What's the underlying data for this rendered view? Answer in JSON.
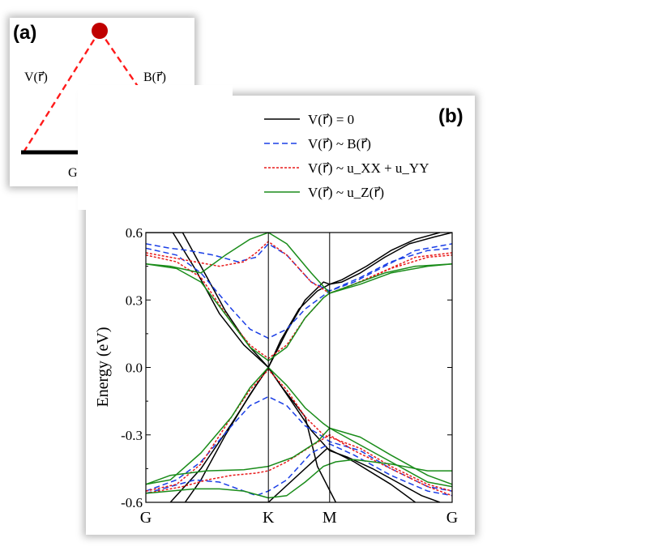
{
  "panel_a": {
    "tag": "(a)",
    "left_label": "V(r⃗)",
    "right_label": "B(r⃗)",
    "bottom_label": "G(r⃗ − r⃗′)",
    "vertex_color": "#c00000",
    "dash_color": "#ff1a1a"
  },
  "panel_b": {
    "tag": "(b)"
  },
  "chart_data": {
    "type": "line",
    "title": "",
    "xlabel": "",
    "ylabel": "Energy (eV)",
    "ylim": [
      -0.6,
      0.6
    ],
    "yticks": [
      "0.6",
      "0.3",
      "0.0",
      "-0.3",
      "-0.6"
    ],
    "yticks_values": [
      0.6,
      0.3,
      0.0,
      -0.3,
      -0.6
    ],
    "x_points": [
      "G",
      "K",
      "M",
      "G"
    ],
    "x_points_pos": [
      0,
      1,
      1.5,
      2.5
    ],
    "xlim": [
      0,
      2.5
    ],
    "legend_position": "top-right, outside plot",
    "legend": [
      {
        "label": "V(r⃗) = 0",
        "color": "#000000",
        "dash": "solid"
      },
      {
        "label": "V(r⃗) ~ B(r⃗)",
        "color": "#1a3ee6",
        "dash": "dashed"
      },
      {
        "label": "V(r⃗) ~ u_XX + u_YY",
        "color": "#e81b1b",
        "dash": "dotted"
      },
      {
        "label": "V(r⃗) ~ u_Z(r⃗)",
        "color": "#1a8c1a",
        "dash": "solid"
      }
    ],
    "series": [
      {
        "name": "V(r⃗) = 0",
        "color": "#000000",
        "dash": "solid",
        "bands": [
          [
            [
              0,
              0.6
            ],
            [
              0.2,
              0.6
            ],
            [
              0.3,
              0.6
            ],
            [
              0.45,
              0.45
            ],
            [
              0.65,
              0.25
            ],
            [
              0.85,
              0.09
            ],
            [
              1,
              0
            ],
            [
              1.1,
              0.12
            ],
            [
              1.25,
              0.26
            ],
            [
              1.4,
              0.34
            ],
            [
              1.5,
              0.37
            ],
            [
              1.6,
              0.38
            ],
            [
              1.75,
              0.42
            ],
            [
              1.95,
              0.49
            ],
            [
              2.15,
              0.55
            ],
            [
              2.35,
              0.58
            ],
            [
              2.5,
              0.6
            ]
          ],
          [
            [
              0.22,
              0.6
            ],
            [
              0.4,
              0.44
            ],
            [
              0.6,
              0.24
            ],
            [
              0.8,
              0.1
            ],
            [
              1,
              0
            ],
            [
              1.15,
              0.16
            ],
            [
              1.3,
              0.3
            ],
            [
              1.45,
              0.38
            ],
            [
              1.5,
              0.37
            ],
            [
              1.6,
              0.39
            ],
            [
              1.8,
              0.45
            ],
            [
              2.0,
              0.52
            ],
            [
              2.2,
              0.57
            ],
            [
              2.4,
              0.6
            ]
          ],
          [
            [
              0.32,
              -0.6
            ],
            [
              0.45,
              -0.5
            ],
            [
              0.65,
              -0.3
            ],
            [
              0.85,
              -0.12
            ],
            [
              1,
              0
            ],
            [
              1.15,
              -0.12
            ],
            [
              1.35,
              -0.28
            ],
            [
              1.5,
              -0.37
            ],
            [
              1.65,
              -0.4
            ],
            [
              1.85,
              -0.45
            ],
            [
              2.05,
              -0.51
            ],
            [
              2.25,
              -0.57
            ],
            [
              2.4,
              -0.6
            ]
          ],
          [
            [
              0.2,
              -0.6
            ],
            [
              0.45,
              -0.45
            ],
            [
              0.7,
              -0.25
            ],
            [
              0.9,
              -0.08
            ],
            [
              1,
              0
            ],
            [
              1.1,
              -0.08
            ],
            [
              1.3,
              -0.22
            ],
            [
              1.4,
              -0.44
            ],
            [
              1.55,
              -0.6
            ]
          ],
          [
            [
              0.2,
              -0.6
            ],
            [
              1.0,
              -0.6
            ],
            [
              1.48,
              -0.36
            ],
            [
              1.7,
              -0.42
            ],
            [
              2.0,
              -0.52
            ],
            [
              2.2,
              -0.6
            ]
          ]
        ]
      },
      {
        "name": "V(r⃗) ~ B(r⃗)",
        "color": "#1a3ee6",
        "dash": "dashed",
        "bands": [
          [
            [
              0,
              0.55
            ],
            [
              0.2,
              0.53
            ],
            [
              0.35,
              0.52
            ],
            [
              0.55,
              0.5
            ],
            [
              0.75,
              0.47
            ],
            [
              0.9,
              0.49
            ],
            [
              1,
              0.55
            ],
            [
              1.15,
              0.5
            ],
            [
              1.35,
              0.38
            ],
            [
              1.5,
              0.34
            ],
            [
              1.7,
              0.38
            ],
            [
              1.95,
              0.45
            ],
            [
              2.2,
              0.52
            ],
            [
              2.5,
              0.55
            ]
          ],
          [
            [
              0,
              0.53
            ],
            [
              0.25,
              0.5
            ],
            [
              0.45,
              0.42
            ],
            [
              0.7,
              0.26
            ],
            [
              0.85,
              0.17
            ],
            [
              1,
              0.13
            ],
            [
              1.15,
              0.17
            ],
            [
              1.3,
              0.26
            ],
            [
              1.45,
              0.32
            ],
            [
              1.5,
              0.34
            ],
            [
              1.75,
              0.4
            ],
            [
              2.0,
              0.47
            ],
            [
              2.3,
              0.52
            ],
            [
              2.5,
              0.53
            ]
          ],
          [
            [
              0,
              -0.55
            ],
            [
              0.25,
              -0.5
            ],
            [
              0.45,
              -0.42
            ],
            [
              0.7,
              -0.26
            ],
            [
              0.85,
              -0.17
            ],
            [
              1,
              -0.13
            ],
            [
              1.15,
              -0.17
            ],
            [
              1.3,
              -0.26
            ],
            [
              1.45,
              -0.31
            ],
            [
              1.5,
              -0.33
            ],
            [
              1.75,
              -0.37
            ],
            [
              2.0,
              -0.45
            ],
            [
              2.3,
              -0.53
            ],
            [
              2.5,
              -0.55
            ]
          ],
          [
            [
              0,
              -0.56
            ],
            [
              0.2,
              -0.53
            ],
            [
              0.4,
              -0.5
            ],
            [
              0.6,
              -0.51
            ],
            [
              0.8,
              -0.55
            ],
            [
              0.9,
              -0.57
            ],
            [
              1,
              -0.55
            ],
            [
              1.15,
              -0.5
            ],
            [
              1.35,
              -0.38
            ],
            [
              1.5,
              -0.34
            ],
            [
              1.7,
              -0.39
            ],
            [
              2.0,
              -0.48
            ],
            [
              2.3,
              -0.55
            ],
            [
              2.5,
              -0.57
            ]
          ]
        ]
      },
      {
        "name": "V(r⃗) ~ u_XX + u_YY",
        "color": "#e81b1b",
        "dash": "dotted",
        "bands": [
          [
            [
              0,
              0.51
            ],
            [
              0.2,
              0.49
            ],
            [
              0.4,
              0.47
            ],
            [
              0.6,
              0.45
            ],
            [
              0.8,
              0.47
            ],
            [
              0.9,
              0.51
            ],
            [
              1,
              0.56
            ],
            [
              1.15,
              0.5
            ],
            [
              1.35,
              0.38
            ],
            [
              1.5,
              0.33
            ],
            [
              1.7,
              0.37
            ],
            [
              1.95,
              0.43
            ],
            [
              2.2,
              0.49
            ],
            [
              2.5,
              0.51
            ]
          ],
          [
            [
              0,
              0.5
            ],
            [
              0.25,
              0.47
            ],
            [
              0.45,
              0.4
            ],
            [
              0.7,
              0.2
            ],
            [
              0.85,
              0.1
            ],
            [
              1,
              0.04
            ],
            [
              1.15,
              0.1
            ],
            [
              1.3,
              0.22
            ],
            [
              1.45,
              0.31
            ],
            [
              1.5,
              0.33
            ],
            [
              1.75,
              0.38
            ],
            [
              2.0,
              0.44
            ],
            [
              2.3,
              0.49
            ],
            [
              2.5,
              0.5
            ]
          ],
          [
            [
              0,
              -0.55
            ],
            [
              0.25,
              -0.52
            ],
            [
              0.45,
              -0.43
            ],
            [
              0.7,
              -0.22
            ],
            [
              0.85,
              -0.1
            ],
            [
              1,
              -0.01
            ],
            [
              1.15,
              -0.1
            ],
            [
              1.3,
              -0.22
            ],
            [
              1.45,
              -0.3
            ],
            [
              1.5,
              -0.31
            ],
            [
              1.75,
              -0.36
            ],
            [
              2.0,
              -0.44
            ],
            [
              2.3,
              -0.52
            ],
            [
              2.5,
              -0.55
            ]
          ],
          [
            [
              0,
              -0.56
            ],
            [
              0.3,
              -0.53
            ],
            [
              0.5,
              -0.5
            ],
            [
              0.7,
              -0.48
            ],
            [
              0.9,
              -0.47
            ],
            [
              1,
              -0.46
            ],
            [
              1.15,
              -0.42
            ],
            [
              1.35,
              -0.35
            ],
            [
              1.5,
              -0.3
            ],
            [
              1.7,
              -0.37
            ],
            [
              2.0,
              -0.45
            ],
            [
              2.3,
              -0.53
            ],
            [
              2.5,
              -0.57
            ]
          ]
        ]
      },
      {
        "name": "V(r⃗) ~ u_Z(r⃗)",
        "color": "#1a8c1a",
        "dash": "solid",
        "bands": [
          [
            [
              0,
              0.46
            ],
            [
              0.2,
              0.45
            ],
            [
              0.45,
              0.42
            ],
            [
              0.65,
              0.5
            ],
            [
              0.85,
              0.57
            ],
            [
              1,
              0.6
            ],
            [
              1.15,
              0.55
            ],
            [
              1.35,
              0.42
            ],
            [
              1.5,
              0.33
            ],
            [
              1.7,
              0.37
            ],
            [
              1.95,
              0.42
            ],
            [
              2.2,
              0.45
            ],
            [
              2.5,
              0.46
            ]
          ],
          [
            [
              0,
              0.46
            ],
            [
              0.25,
              0.44
            ],
            [
              0.45,
              0.38
            ],
            [
              0.7,
              0.2
            ],
            [
              0.85,
              0.09
            ],
            [
              1,
              0.03
            ],
            [
              1.15,
              0.09
            ],
            [
              1.3,
              0.22
            ],
            [
              1.45,
              0.31
            ],
            [
              1.5,
              0.33
            ],
            [
              1.75,
              0.37
            ],
            [
              2.0,
              0.42
            ],
            [
              2.3,
              0.45
            ],
            [
              2.5,
              0.46
            ]
          ],
          [
            [
              0,
              -0.52
            ],
            [
              0.2,
              -0.5
            ],
            [
              0.45,
              -0.38
            ],
            [
              0.7,
              -0.22
            ],
            [
              0.85,
              -0.09
            ],
            [
              1,
              0.0
            ],
            [
              1.15,
              -0.08
            ],
            [
              1.3,
              -0.18
            ],
            [
              1.45,
              -0.25
            ],
            [
              1.5,
              -0.27
            ],
            [
              1.75,
              -0.31
            ],
            [
              2.0,
              -0.39
            ],
            [
              2.3,
              -0.48
            ],
            [
              2.5,
              -0.52
            ]
          ],
          [
            [
              0,
              -0.56
            ],
            [
              0.2,
              -0.55
            ],
            [
              0.4,
              -0.54
            ],
            [
              0.6,
              -0.54
            ],
            [
              0.8,
              -0.55
            ],
            [
              1,
              -0.58
            ],
            [
              1.15,
              -0.57
            ],
            [
              1.3,
              -0.51
            ],
            [
              1.45,
              -0.44
            ],
            [
              1.55,
              -0.42
            ],
            [
              1.7,
              -0.41
            ],
            [
              2.0,
              -0.43
            ],
            [
              2.3,
              -0.46
            ],
            [
              2.5,
              -0.46
            ]
          ],
          [
            [
              0,
              -0.52
            ],
            [
              0.2,
              -0.48
            ],
            [
              0.5,
              -0.46
            ],
            [
              0.8,
              -0.455
            ],
            [
              1,
              -0.44
            ],
            [
              1.2,
              -0.4
            ],
            [
              1.4,
              -0.33
            ],
            [
              1.5,
              -0.27
            ],
            [
              1.7,
              -0.33
            ],
            [
              2.0,
              -0.42
            ],
            [
              2.3,
              -0.51
            ],
            [
              2.5,
              -0.53
            ]
          ]
        ]
      }
    ]
  }
}
